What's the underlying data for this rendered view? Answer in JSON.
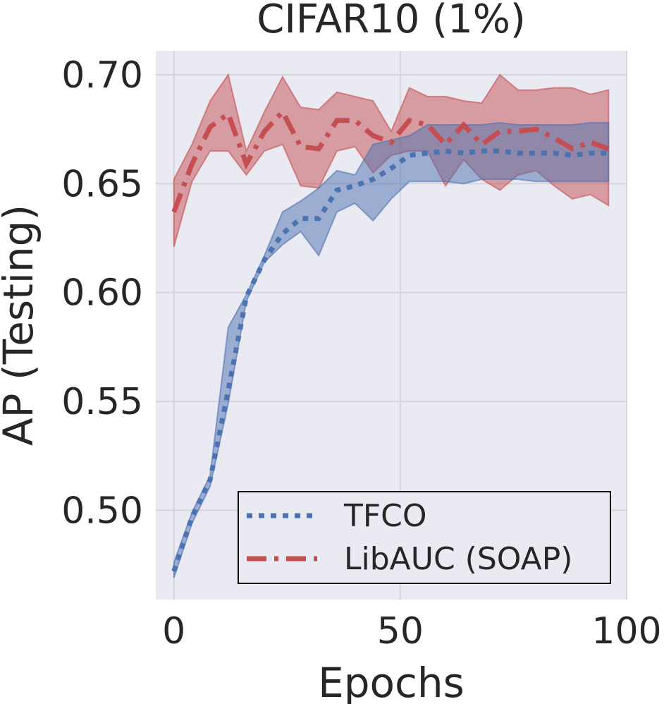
{
  "chart_data": {
    "type": "line",
    "title": "CIFAR10 (1%)",
    "xlabel": "Epochs",
    "ylabel": "AP (Testing)",
    "xlim": [
      -4,
      100
    ],
    "ylim": [
      0.459,
      0.711
    ],
    "xticks": [
      0,
      50,
      100
    ],
    "xtick_labels": [
      "0",
      "50",
      "100"
    ],
    "yticks": [
      0.5,
      0.55,
      0.6,
      0.65,
      0.7
    ],
    "ytick_labels": [
      "0.50",
      "0.55",
      "0.60",
      "0.65",
      "0.70"
    ],
    "grid": true,
    "legend_position": "lower-right",
    "x": [
      0,
      4,
      8,
      12,
      16,
      20,
      24,
      28,
      32,
      36,
      40,
      44,
      48,
      52,
      56,
      60,
      64,
      68,
      72,
      76,
      80,
      84,
      88,
      92,
      96
    ],
    "series": [
      {
        "name": "TFCO",
        "color": "#4c72b0",
        "style": "dotted",
        "values": [
          0.472,
          0.497,
          0.514,
          0.555,
          0.598,
          0.615,
          0.627,
          0.634,
          0.634,
          0.647,
          0.649,
          0.652,
          0.657,
          0.663,
          0.664,
          0.665,
          0.664,
          0.665,
          0.665,
          0.664,
          0.664,
          0.664,
          0.663,
          0.664,
          0.664
        ],
        "lower": [
          0.469,
          0.494,
          0.511,
          0.549,
          0.596,
          0.614,
          0.622,
          0.628,
          0.617,
          0.637,
          0.641,
          0.633,
          0.643,
          0.651,
          0.651,
          0.651,
          0.65,
          0.652,
          0.652,
          0.652,
          0.651,
          0.651,
          0.651,
          0.651,
          0.651
        ],
        "upper": [
          0.476,
          0.499,
          0.516,
          0.584,
          0.599,
          0.617,
          0.637,
          0.642,
          0.648,
          0.656,
          0.654,
          0.668,
          0.67,
          0.672,
          0.677,
          0.677,
          0.677,
          0.677,
          0.678,
          0.677,
          0.677,
          0.677,
          0.677,
          0.678,
          0.678
        ]
      },
      {
        "name": "LibAUC (SOAP)",
        "color": "#c44e52",
        "style": "dashdot",
        "values": [
          0.637,
          0.659,
          0.676,
          0.682,
          0.659,
          0.674,
          0.683,
          0.667,
          0.666,
          0.679,
          0.679,
          0.672,
          0.669,
          0.679,
          0.677,
          0.668,
          0.677,
          0.668,
          0.674,
          0.674,
          0.675,
          0.671,
          0.666,
          0.669,
          0.666
        ],
        "lower": [
          0.621,
          0.651,
          0.665,
          0.665,
          0.654,
          0.665,
          0.668,
          0.649,
          0.648,
          0.665,
          0.667,
          0.655,
          0.663,
          0.665,
          0.665,
          0.649,
          0.661,
          0.652,
          0.647,
          0.654,
          0.656,
          0.649,
          0.643,
          0.645,
          0.64
        ],
        "upper": [
          0.652,
          0.668,
          0.688,
          0.7,
          0.665,
          0.683,
          0.699,
          0.685,
          0.684,
          0.692,
          0.69,
          0.688,
          0.674,
          0.694,
          0.69,
          0.69,
          0.688,
          0.687,
          0.7,
          0.693,
          0.693,
          0.694,
          0.694,
          0.691,
          0.693
        ]
      }
    ]
  },
  "colors": {
    "plot_background": "#eaeaf2",
    "grid": "#ffffff"
  }
}
